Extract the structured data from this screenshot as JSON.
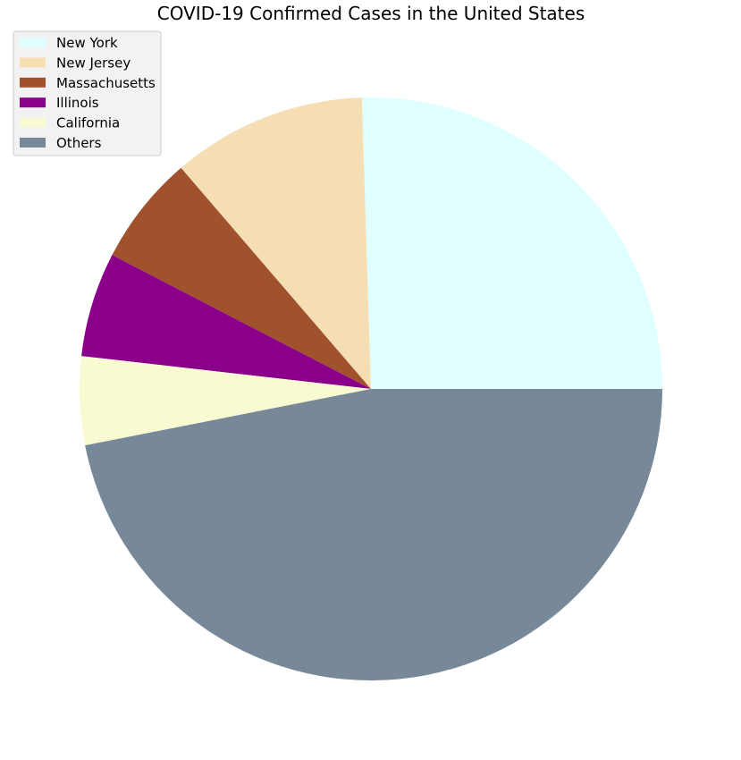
{
  "chart_data": {
    "type": "pie",
    "title": "COVID-19 Confirmed Cases in the United States",
    "legend_position": "top-left",
    "start_angle_deg": 0,
    "direction": "counterclockwise",
    "slices": [
      {
        "label": "New York",
        "value": 25.5,
        "color": "#e0ffff"
      },
      {
        "label": "New Jersey",
        "value": 10.8,
        "color": "#f5deb3"
      },
      {
        "label": "Massachusetts",
        "value": 6.1,
        "color": "#a0522d"
      },
      {
        "label": "Illinois",
        "value": 5.8,
        "color": "#8b008b"
      },
      {
        "label": "California",
        "value": 4.9,
        "color": "#fafad2"
      },
      {
        "label": "Others",
        "value": 46.9,
        "color": "#778899"
      }
    ]
  }
}
